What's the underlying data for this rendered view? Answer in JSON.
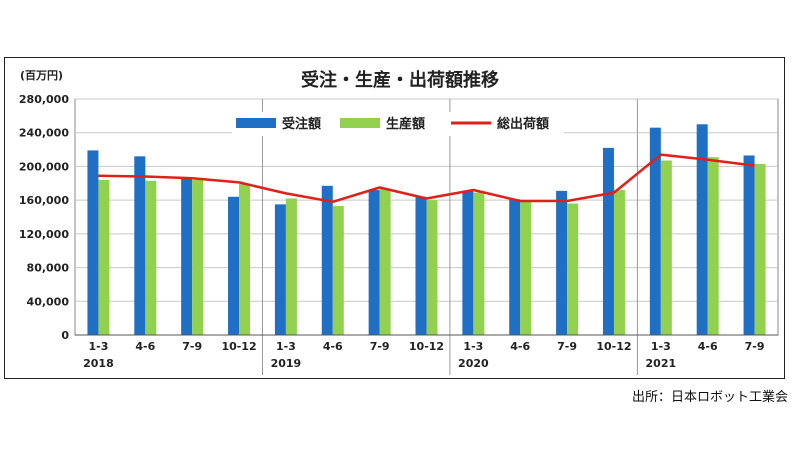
{
  "unit": "(百万円)",
  "source": "出所：日本ロボット工業会",
  "chart_data": {
    "type": "bar",
    "title": "受注・生産・出荷額推移",
    "quarters": [
      "1-3",
      "4-6",
      "7-9",
      "10-12",
      "1-3",
      "4-6",
      "7-9",
      "10-12",
      "1-3",
      "4-6",
      "7-9",
      "10-12",
      "1-3",
      "4-6",
      "7-9"
    ],
    "years": [
      {
        "label": "2018",
        "start_index": 0
      },
      {
        "label": "2019",
        "start_index": 4
      },
      {
        "label": "2020",
        "start_index": 8
      },
      {
        "label": "2021",
        "start_index": 12
      }
    ],
    "ylim": [
      0,
      280000
    ],
    "yticks": [
      "0",
      "40,000",
      "80,000",
      "120,000",
      "160,000",
      "200,000",
      "240,000",
      "280,000"
    ],
    "ytick_values": [
      0,
      40000,
      80000,
      120000,
      160000,
      200000,
      240000,
      280000
    ],
    "grid": true,
    "legend_position": "top-center",
    "series": [
      {
        "name": "受注額",
        "kind": "bar",
        "color": "#1f6fc5",
        "values": [
          219000,
          212000,
          186000,
          164000,
          155000,
          177000,
          172000,
          164000,
          171000,
          161000,
          171000,
          222000,
          246000,
          250000,
          213000
        ]
      },
      {
        "name": "生産額",
        "kind": "bar",
        "color": "#92d050",
        "values": [
          184000,
          183000,
          184000,
          179000,
          162000,
          153000,
          174000,
          160000,
          169000,
          158000,
          156000,
          172000,
          207000,
          211000,
          203000
        ]
      },
      {
        "name": "総出荷額",
        "kind": "line",
        "color": "#e0201b",
        "values": [
          189000,
          188000,
          186000,
          181000,
          168000,
          158000,
          175000,
          162000,
          172000,
          159000,
          159000,
          169000,
          214000,
          208000,
          201000
        ]
      }
    ]
  }
}
